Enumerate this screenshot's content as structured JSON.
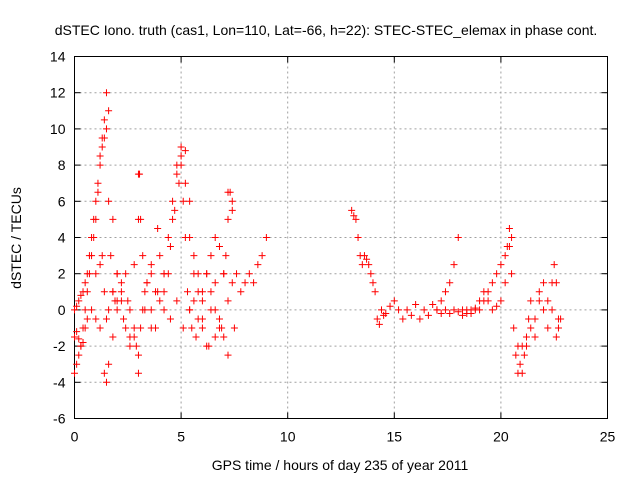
{
  "chart_data": {
    "type": "scatter",
    "title": "dSTEC Iono. truth (cas1, Lon=110, Lat=-66, h=22): STEC-STEC_elemax in phase cont.",
    "xlabel": "GPS time / hours of day 235 of year 2011",
    "ylabel": "dSTEC  / TECUs",
    "xlim": [
      0,
      25
    ],
    "ylim": [
      -6,
      14
    ],
    "xticks": [
      0,
      5,
      10,
      15,
      20,
      25
    ],
    "yticks": [
      -6,
      -4,
      -2,
      0,
      2,
      4,
      6,
      8,
      10,
      12,
      14
    ],
    "grid": true,
    "marker": "+",
    "marker_color": "#ff0000",
    "series": [
      {
        "x": [
          0.0,
          0.1,
          0.2,
          0.3,
          0.4,
          0.5,
          0.6,
          0.7,
          0.8,
          0.9,
          1.0,
          1.1,
          1.2,
          1.3,
          1.4,
          1.5,
          1.6,
          1.7,
          1.8,
          1.9,
          2.0,
          2.2,
          2.4,
          2.6,
          2.8,
          3.0,
          3.2,
          3.4,
          3.6,
          3.8,
          4.0,
          4.2,
          4.4,
          4.6,
          4.8,
          5.0,
          5.2,
          5.4,
          5.6,
          5.8,
          6.0,
          6.2,
          6.4,
          6.6,
          6.8,
          7.0,
          7.2,
          7.4,
          7.6,
          7.8,
          8.0,
          8.2,
          8.4,
          8.6,
          8.8,
          9.0,
          0.0,
          0.1,
          0.2,
          0.3,
          0.4,
          0.5,
          0.6,
          0.7,
          0.8,
          0.9,
          1.0,
          1.1,
          1.2,
          1.3,
          1.4,
          1.5,
          1.6,
          1.8,
          2.0,
          2.2,
          2.4,
          2.6,
          2.8,
          3.0,
          3.2,
          3.4,
          3.6,
          3.8,
          4.0,
          4.2,
          4.4,
          4.6,
          4.8,
          5.0,
          5.2,
          5.4,
          5.6,
          5.8,
          6.0,
          6.2,
          6.4,
          6.6,
          6.8,
          7.0,
          7.2,
          7.4,
          0.0,
          0.1,
          0.2,
          0.3,
          0.4,
          0.5,
          0.6,
          0.8,
          1.0,
          1.2,
          1.4,
          1.5,
          1.6,
          1.8,
          2.0,
          2.3,
          2.6,
          2.9,
          3.0,
          3.1,
          3.3,
          3.6,
          3.9,
          4.2,
          4.5,
          4.8,
          5.1,
          5.4,
          5.7,
          6.0,
          6.3,
          6.6,
          6.9,
          7.2,
          7.5,
          1.0,
          1.2,
          1.3,
          1.4,
          1.5,
          1.6,
          1.8,
          2.0,
          2.2,
          2.5,
          2.8,
          3.0,
          3.05,
          3.1,
          3.3,
          3.6,
          3.9,
          4.2,
          4.5,
          4.7,
          4.9,
          5.0,
          5.1,
          5.2,
          5.3,
          5.4,
          5.5,
          5.6,
          5.8,
          6.0,
          6.2,
          6.4,
          6.6,
          6.8,
          7.0,
          7.1,
          7.2,
          7.3,
          7.4,
          13.0,
          13.1,
          13.2,
          13.3,
          13.4,
          13.5,
          13.6,
          13.7,
          13.8,
          13.9,
          14.0,
          14.1,
          14.2,
          14.3,
          14.4,
          14.5,
          14.6,
          14.8,
          15.0,
          15.2,
          15.4,
          15.6,
          15.8,
          16.0,
          16.2,
          16.4,
          16.6,
          16.8,
          17.0,
          17.2,
          17.4,
          17.6,
          17.8,
          18.0,
          18.2,
          18.4,
          18.6,
          18.8,
          19.0,
          19.2,
          19.4,
          19.6,
          19.8,
          20.0,
          20.2,
          20.4,
          20.5,
          20.6,
          20.7,
          20.8,
          20.9,
          21.0,
          21.1,
          21.2,
          21.3,
          21.4,
          21.6,
          21.8,
          22.0,
          22.2,
          22.4,
          22.6,
          22.7,
          17.0,
          17.2,
          17.4,
          17.6,
          17.8,
          18.0,
          18.2,
          18.4,
          18.6,
          18.8,
          19.0,
          19.2,
          19.4,
          19.6,
          19.8,
          20.0,
          20.2,
          20.3,
          20.4,
          20.5,
          20.8,
          21.0,
          21.2,
          21.4,
          21.6,
          21.8,
          22.0,
          22.2,
          22.4,
          22.5,
          22.6,
          22.7,
          22.8
        ],
        "y": [
          -3.5,
          -3.0,
          -2.5,
          -2.0,
          -1.0,
          0.0,
          1.0,
          2.0,
          3.0,
          4.0,
          5.0,
          6.5,
          8.0,
          9.5,
          10.5,
          12.0,
          6.0,
          3.0,
          1.0,
          0.5,
          0.0,
          1.0,
          2.0,
          0.0,
          -1.0,
          -2.5,
          0.0,
          1.5,
          2.0,
          1.0,
          3.0,
          1.0,
          2.0,
          5.0,
          8.0,
          9.0,
          7.0,
          4.0,
          2.0,
          1.0,
          0.5,
          2.0,
          1.0,
          0.0,
          -1.0,
          2.0,
          6.5,
          5.5,
          2.0,
          1.0,
          1.5,
          2.0,
          1.5,
          2.5,
          3.0,
          4.0,
          0.0,
          0.2,
          0.5,
          0.8,
          1.0,
          1.5,
          2.0,
          3.0,
          4.0,
          5.0,
          6.0,
          7.0,
          8.5,
          9.0,
          9.5,
          10.0,
          11.0,
          5.0,
          2.0,
          0.5,
          -1.0,
          -2.0,
          -1.5,
          7.5,
          3.0,
          1.5,
          0.0,
          -1.0,
          0.5,
          2.0,
          4.0,
          6.0,
          7.5,
          8.5,
          8.8,
          6.0,
          3.0,
          2.0,
          -1.0,
          -2.0,
          0.0,
          1.5,
          -0.5,
          -1.5,
          0.5,
          1.5,
          -1.5,
          -1.2,
          -1.6,
          -2.0,
          -1.8,
          -1.0,
          -0.5,
          0.0,
          -0.5,
          -1.0,
          -3.5,
          -4.0,
          -3.0,
          -1.5,
          0.5,
          -0.5,
          -1.5,
          -2.0,
          -3.5,
          -1.0,
          0.0,
          -1.0,
          1.0,
          0.0,
          -0.5,
          0.5,
          -1.0,
          0.0,
          -1.5,
          -0.5,
          -2.0,
          -1.5,
          -1.0,
          -2.5,
          -1.0,
          2.0,
          2.5,
          3.0,
          1.0,
          -0.5,
          0.0,
          1.0,
          2.0,
          1.5,
          0.5,
          2.5,
          5.0,
          7.5,
          5.0,
          1.0,
          2.5,
          4.5,
          2.0,
          3.5,
          5.5,
          7.0,
          8.0,
          6.0,
          4.0,
          1.0,
          0.0,
          -1.0,
          0.5,
          -0.5,
          1.0,
          2.0,
          3.0,
          4.0,
          3.5,
          2.0,
          3.0,
          5.0,
          6.5,
          6.0,
          5.5,
          5.2,
          5.0,
          4.0,
          3.0,
          2.5,
          3.0,
          2.8,
          2.5,
          2.0,
          1.5,
          1.0,
          -0.5,
          -0.8,
          0.0,
          -0.3,
          -0.2,
          0.2,
          0.5,
          0.0,
          -0.5,
          0.0,
          -0.3,
          0.3,
          -0.5,
          0.0,
          -0.3,
          0.3,
          0.0,
          -0.2,
          0.0,
          -0.2,
          0.0,
          -0.1,
          -0.3,
          0.0,
          -0.2,
          0.0,
          0.5,
          1.0,
          0.5,
          0.0,
          0.2,
          0.5,
          1.5,
          3.5,
          4.0,
          -1.0,
          -2.5,
          -3.5,
          -3.0,
          -2.0,
          -2.5,
          -1.5,
          -0.5,
          0.5,
          -0.5,
          1.0,
          0.0,
          -1.0,
          0.0,
          1.5,
          -0.5,
          0.0,
          0.5,
          1.0,
          1.5,
          2.5,
          4.0,
          0.0,
          -0.2,
          0.0,
          0.1,
          0.0,
          0.5,
          1.0,
          1.5,
          2.0,
          2.5,
          3.0,
          3.5,
          4.5,
          2.0,
          -2.0,
          -3.5,
          -2.0,
          -1.0,
          -1.5,
          0.5,
          1.5,
          0.5,
          1.5,
          2.5,
          -1.5,
          -1.0,
          -0.5
        ]
      }
    ]
  }
}
